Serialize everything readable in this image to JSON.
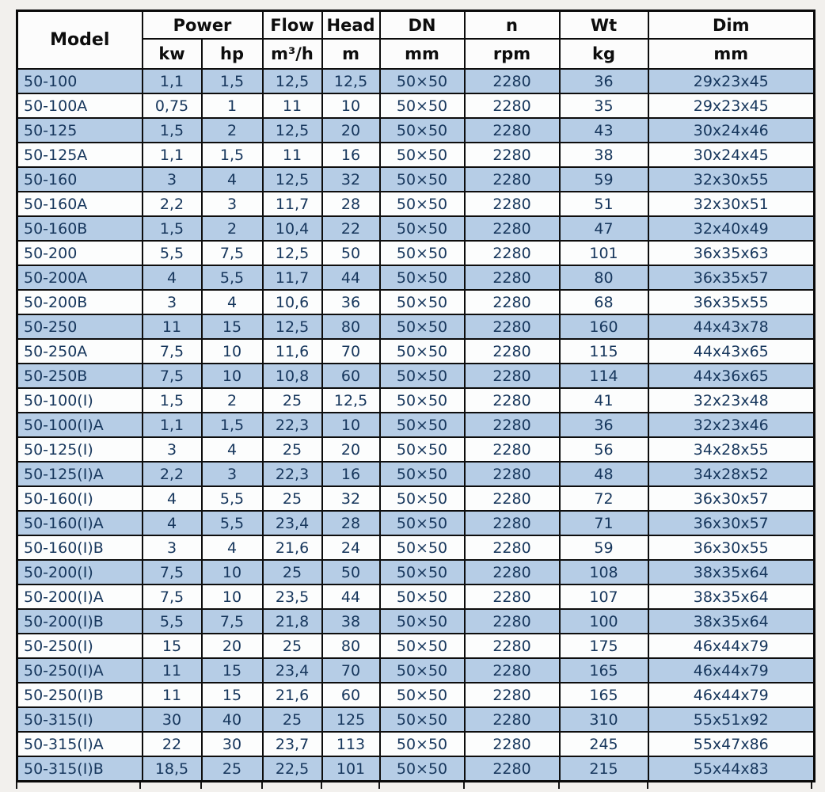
{
  "chart_data": {
    "type": "table",
    "header": {
      "model": "Model",
      "power": "Power",
      "kw": "kw",
      "hp": "hp",
      "flow": "Flow",
      "flow_unit": "m³/h",
      "head": "Head",
      "head_unit": "m",
      "dn": "DN",
      "dn_unit": "mm",
      "n": "n",
      "n_unit": "rpm",
      "wt": "Wt",
      "wt_unit": "kg",
      "dim": "Dim",
      "dim_unit": "mm"
    },
    "columns": [
      "Model",
      "Power kw",
      "Power hp",
      "Flow m³/h",
      "Head m",
      "DN mm",
      "n rpm",
      "Wt kg",
      "Dim mm"
    ],
    "rows": [
      [
        "50-100",
        "1,1",
        "1,5",
        "12,5",
        "12,5",
        "50×50",
        "2280",
        "36",
        "29x23x45"
      ],
      [
        "50-100A",
        "0,75",
        "1",
        "11",
        "10",
        "50×50",
        "2280",
        "35",
        "29x23x45"
      ],
      [
        "50-125",
        "1,5",
        "2",
        "12,5",
        "20",
        "50×50",
        "2280",
        "43",
        "30x24x46"
      ],
      [
        "50-125A",
        "1,1",
        "1,5",
        "11",
        "16",
        "50×50",
        "2280",
        "38",
        "30x24x45"
      ],
      [
        "50-160",
        "3",
        "4",
        "12,5",
        "32",
        "50×50",
        "2280",
        "59",
        "32x30x55"
      ],
      [
        "50-160A",
        "2,2",
        "3",
        "11,7",
        "28",
        "50×50",
        "2280",
        "51",
        "32x30x51"
      ],
      [
        "50-160B",
        "1,5",
        "2",
        "10,4",
        "22",
        "50×50",
        "2280",
        "47",
        "32x40x49"
      ],
      [
        "50-200",
        "5,5",
        "7,5",
        "12,5",
        "50",
        "50×50",
        "2280",
        "101",
        "36x35x63"
      ],
      [
        "50-200A",
        "4",
        "5,5",
        "11,7",
        "44",
        "50×50",
        "2280",
        "80",
        "36x35x57"
      ],
      [
        "50-200B",
        "3",
        "4",
        "10,6",
        "36",
        "50×50",
        "2280",
        "68",
        "36x35x55"
      ],
      [
        "50-250",
        "11",
        "15",
        "12,5",
        "80",
        "50×50",
        "2280",
        "160",
        "44x43x78"
      ],
      [
        "50-250A",
        "7,5",
        "10",
        "11,6",
        "70",
        "50×50",
        "2280",
        "115",
        "44x43x65"
      ],
      [
        "50-250B",
        "7,5",
        "10",
        "10,8",
        "60",
        "50×50",
        "2280",
        "114",
        "44x36x65"
      ],
      [
        "50-100(I)",
        "1,5",
        "2",
        "25",
        "12,5",
        "50×50",
        "2280",
        "41",
        "32x23x48"
      ],
      [
        "50-100(I)A",
        "1,1",
        "1,5",
        "22,3",
        "10",
        "50×50",
        "2280",
        "36",
        "32x23x46"
      ],
      [
        "50-125(I)",
        "3",
        "4",
        "25",
        "20",
        "50×50",
        "2280",
        "56",
        "34x28x55"
      ],
      [
        "50-125(I)A",
        "2,2",
        "3",
        "22,3",
        "16",
        "50×50",
        "2280",
        "48",
        "34x28x52"
      ],
      [
        "50-160(I)",
        "4",
        "5,5",
        "25",
        "32",
        "50×50",
        "2280",
        "72",
        "36x30x57"
      ],
      [
        "50-160(I)A",
        "4",
        "5,5",
        "23,4",
        "28",
        "50×50",
        "2280",
        "71",
        "36x30x57"
      ],
      [
        "50-160(I)B",
        "3",
        "4",
        "21,6",
        "24",
        "50×50",
        "2280",
        "59",
        "36x30x55"
      ],
      [
        "50-200(I)",
        "7,5",
        "10",
        "25",
        "50",
        "50×50",
        "2280",
        "108",
        "38x35x64"
      ],
      [
        "50-200(I)A",
        "7,5",
        "10",
        "23,5",
        "44",
        "50×50",
        "2280",
        "107",
        "38x35x64"
      ],
      [
        "50-200(I)B",
        "5,5",
        "7,5",
        "21,8",
        "38",
        "50×50",
        "2280",
        "100",
        "38x35x64"
      ],
      [
        "50-250(I)",
        "15",
        "20",
        "25",
        "80",
        "50×50",
        "2280",
        "175",
        "46x44x79"
      ],
      [
        "50-250(I)A",
        "11",
        "15",
        "23,4",
        "70",
        "50×50",
        "2280",
        "165",
        "46x44x79"
      ],
      [
        "50-250(I)B",
        "11",
        "15",
        "21,6",
        "60",
        "50×50",
        "2280",
        "165",
        "46x44x79"
      ],
      [
        "50-315(I)",
        "30",
        "40",
        "25",
        "125",
        "50×50",
        "2280",
        "310",
        "55x51x92"
      ],
      [
        "50-315(I)A",
        "22",
        "30",
        "23,7",
        "113",
        "50×50",
        "2280",
        "245",
        "55x47x86"
      ],
      [
        "50-315(I)B",
        "18,5",
        "25",
        "22,5",
        "101",
        "50×50",
        "2280",
        "215",
        "55x44x83"
      ]
    ],
    "colors": {
      "row_stripe": "#b6cde6",
      "row_plain": "#fcfdfd",
      "text": "#16365c",
      "header_text": "#0d0d0d",
      "border": "#0d0d0d",
      "page_background": "#f2f0ed"
    }
  }
}
